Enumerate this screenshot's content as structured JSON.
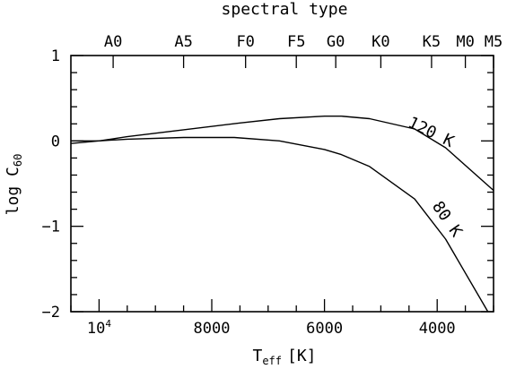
{
  "chart_data": {
    "type": "line",
    "xlabel": "T",
    "xlabel_sub": "eff",
    "xlabel_unit": "[K]",
    "ylabel": "log C",
    "ylabel_sub": "60",
    "top_axis_title": "spectral type",
    "x_reversed": true,
    "xlim": [
      10500,
      3000
    ],
    "ylim": [
      -2,
      1
    ],
    "x_ticks": [
      {
        "value": 10000,
        "label": "10",
        "sup": "4"
      },
      {
        "value": 8000,
        "label": "8000",
        "sup": ""
      },
      {
        "value": 6000,
        "label": "6000",
        "sup": ""
      },
      {
        "value": 4000,
        "label": "4000",
        "sup": ""
      }
    ],
    "x_minor_step": 500,
    "y_ticks": [
      {
        "value": 1,
        "label": "1"
      },
      {
        "value": 0,
        "label": "0"
      },
      {
        "value": -1,
        "label": "−1"
      },
      {
        "value": -2,
        "label": "−2"
      }
    ],
    "y_minor_step": 0.2,
    "top_ticks": [
      {
        "value": 9750,
        "label": "A0"
      },
      {
        "value": 8500,
        "label": "A5"
      },
      {
        "value": 7400,
        "label": "F0"
      },
      {
        "value": 6500,
        "label": "F5"
      },
      {
        "value": 5800,
        "label": "G0"
      },
      {
        "value": 5000,
        "label": "K0"
      },
      {
        "value": 4100,
        "label": "K5"
      },
      {
        "value": 3500,
        "label": "M0"
      },
      {
        "value": 2900,
        "label": "M5"
      }
    ],
    "series": [
      {
        "name": "120 K",
        "x": [
          10500,
          10000,
          9500,
          8500,
          7500,
          6800,
          6000,
          5700,
          5200,
          4400,
          3850,
          3000
        ],
        "y": [
          -0.03,
          0.0,
          0.05,
          0.13,
          0.21,
          0.26,
          0.29,
          0.29,
          0.26,
          0.14,
          -0.08,
          -0.58
        ]
      },
      {
        "name": "80 K",
        "x": [
          10500,
          10000,
          9500,
          8500,
          7600,
          6800,
          6000,
          5700,
          5200,
          4400,
          3850,
          3100
        ],
        "y": [
          0.0,
          0.0,
          0.02,
          0.04,
          0.04,
          0.0,
          -0.1,
          -0.16,
          -0.3,
          -0.68,
          -1.15,
          -2.0
        ]
      }
    ],
    "annotations": [
      {
        "text": "120 K",
        "x": 4150,
        "y": 0.05,
        "rotate": 26
      },
      {
        "text": "80 K",
        "x": 3900,
        "y": -0.95,
        "rotate": 55
      }
    ]
  }
}
